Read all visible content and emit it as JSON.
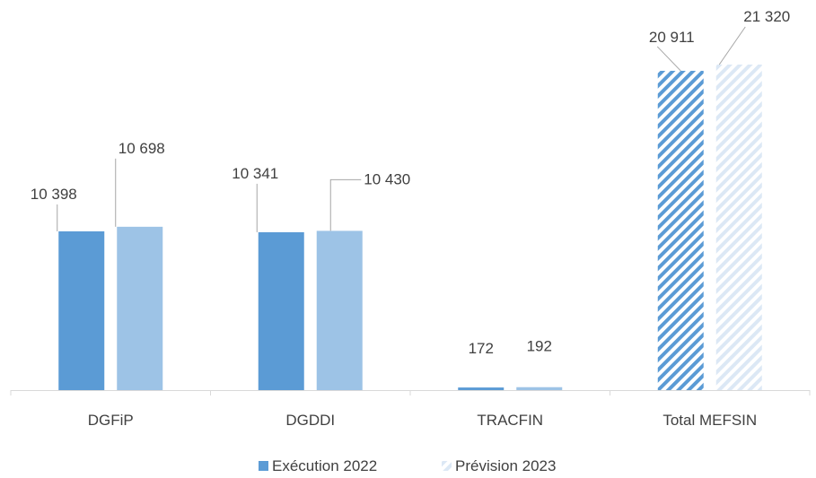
{
  "chart_data": {
    "type": "bar",
    "categories": [
      "DGFiP",
      "DGDDI",
      "TRACFIN",
      "Total MEFSIN"
    ],
    "series": [
      {
        "name": "Exécution 2022",
        "values": [
          10398,
          10341,
          172,
          20911
        ],
        "value_labels": [
          "10 398",
          "10 341",
          "172",
          "20 911"
        ],
        "color": "#5b9bd5"
      },
      {
        "name": "Prévision 2023",
        "values": [
          10698,
          10430,
          192,
          21320
        ],
        "value_labels": [
          "10 698",
          "10 430",
          "192",
          "21 320"
        ],
        "color": "#9dc3e6"
      }
    ],
    "hatched_category": "Total MEFSIN",
    "ylim": [
      0,
      21320
    ],
    "grid": false,
    "legend_position": "bottom"
  }
}
